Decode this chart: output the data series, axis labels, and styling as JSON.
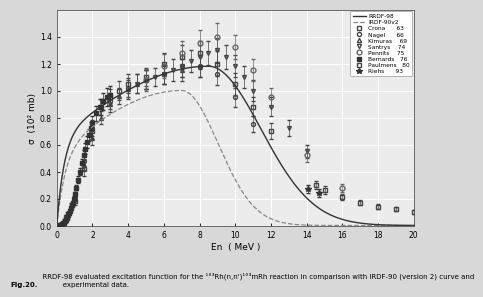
{
  "xlabel": "En  ( MeV )",
  "ylabel": "σ  (10² mb)",
  "xlim": [
    0,
    20
  ],
  "ylim": [
    0.0,
    1.6
  ],
  "yticks": [
    0.0,
    0.2,
    0.4,
    0.6,
    0.8,
    1.0,
    1.2,
    1.4
  ],
  "xticks": [
    0,
    2,
    4,
    6,
    8,
    10,
    12,
    14,
    16,
    18,
    20
  ],
  "bg_color": "#ececec",
  "grid_color": "#ffffff",
  "line_color_rrdf": "#333333",
  "line_color_irdf": "#888888",
  "caption_bold": "Fig.20.",
  "caption_normal": "  RRDF-98 evaluated excitation function for the ¹°³Rh(n,n')¹°³mRh reaction in comparison with IRDF-90 (version 2) curve and\n           experimental data."
}
